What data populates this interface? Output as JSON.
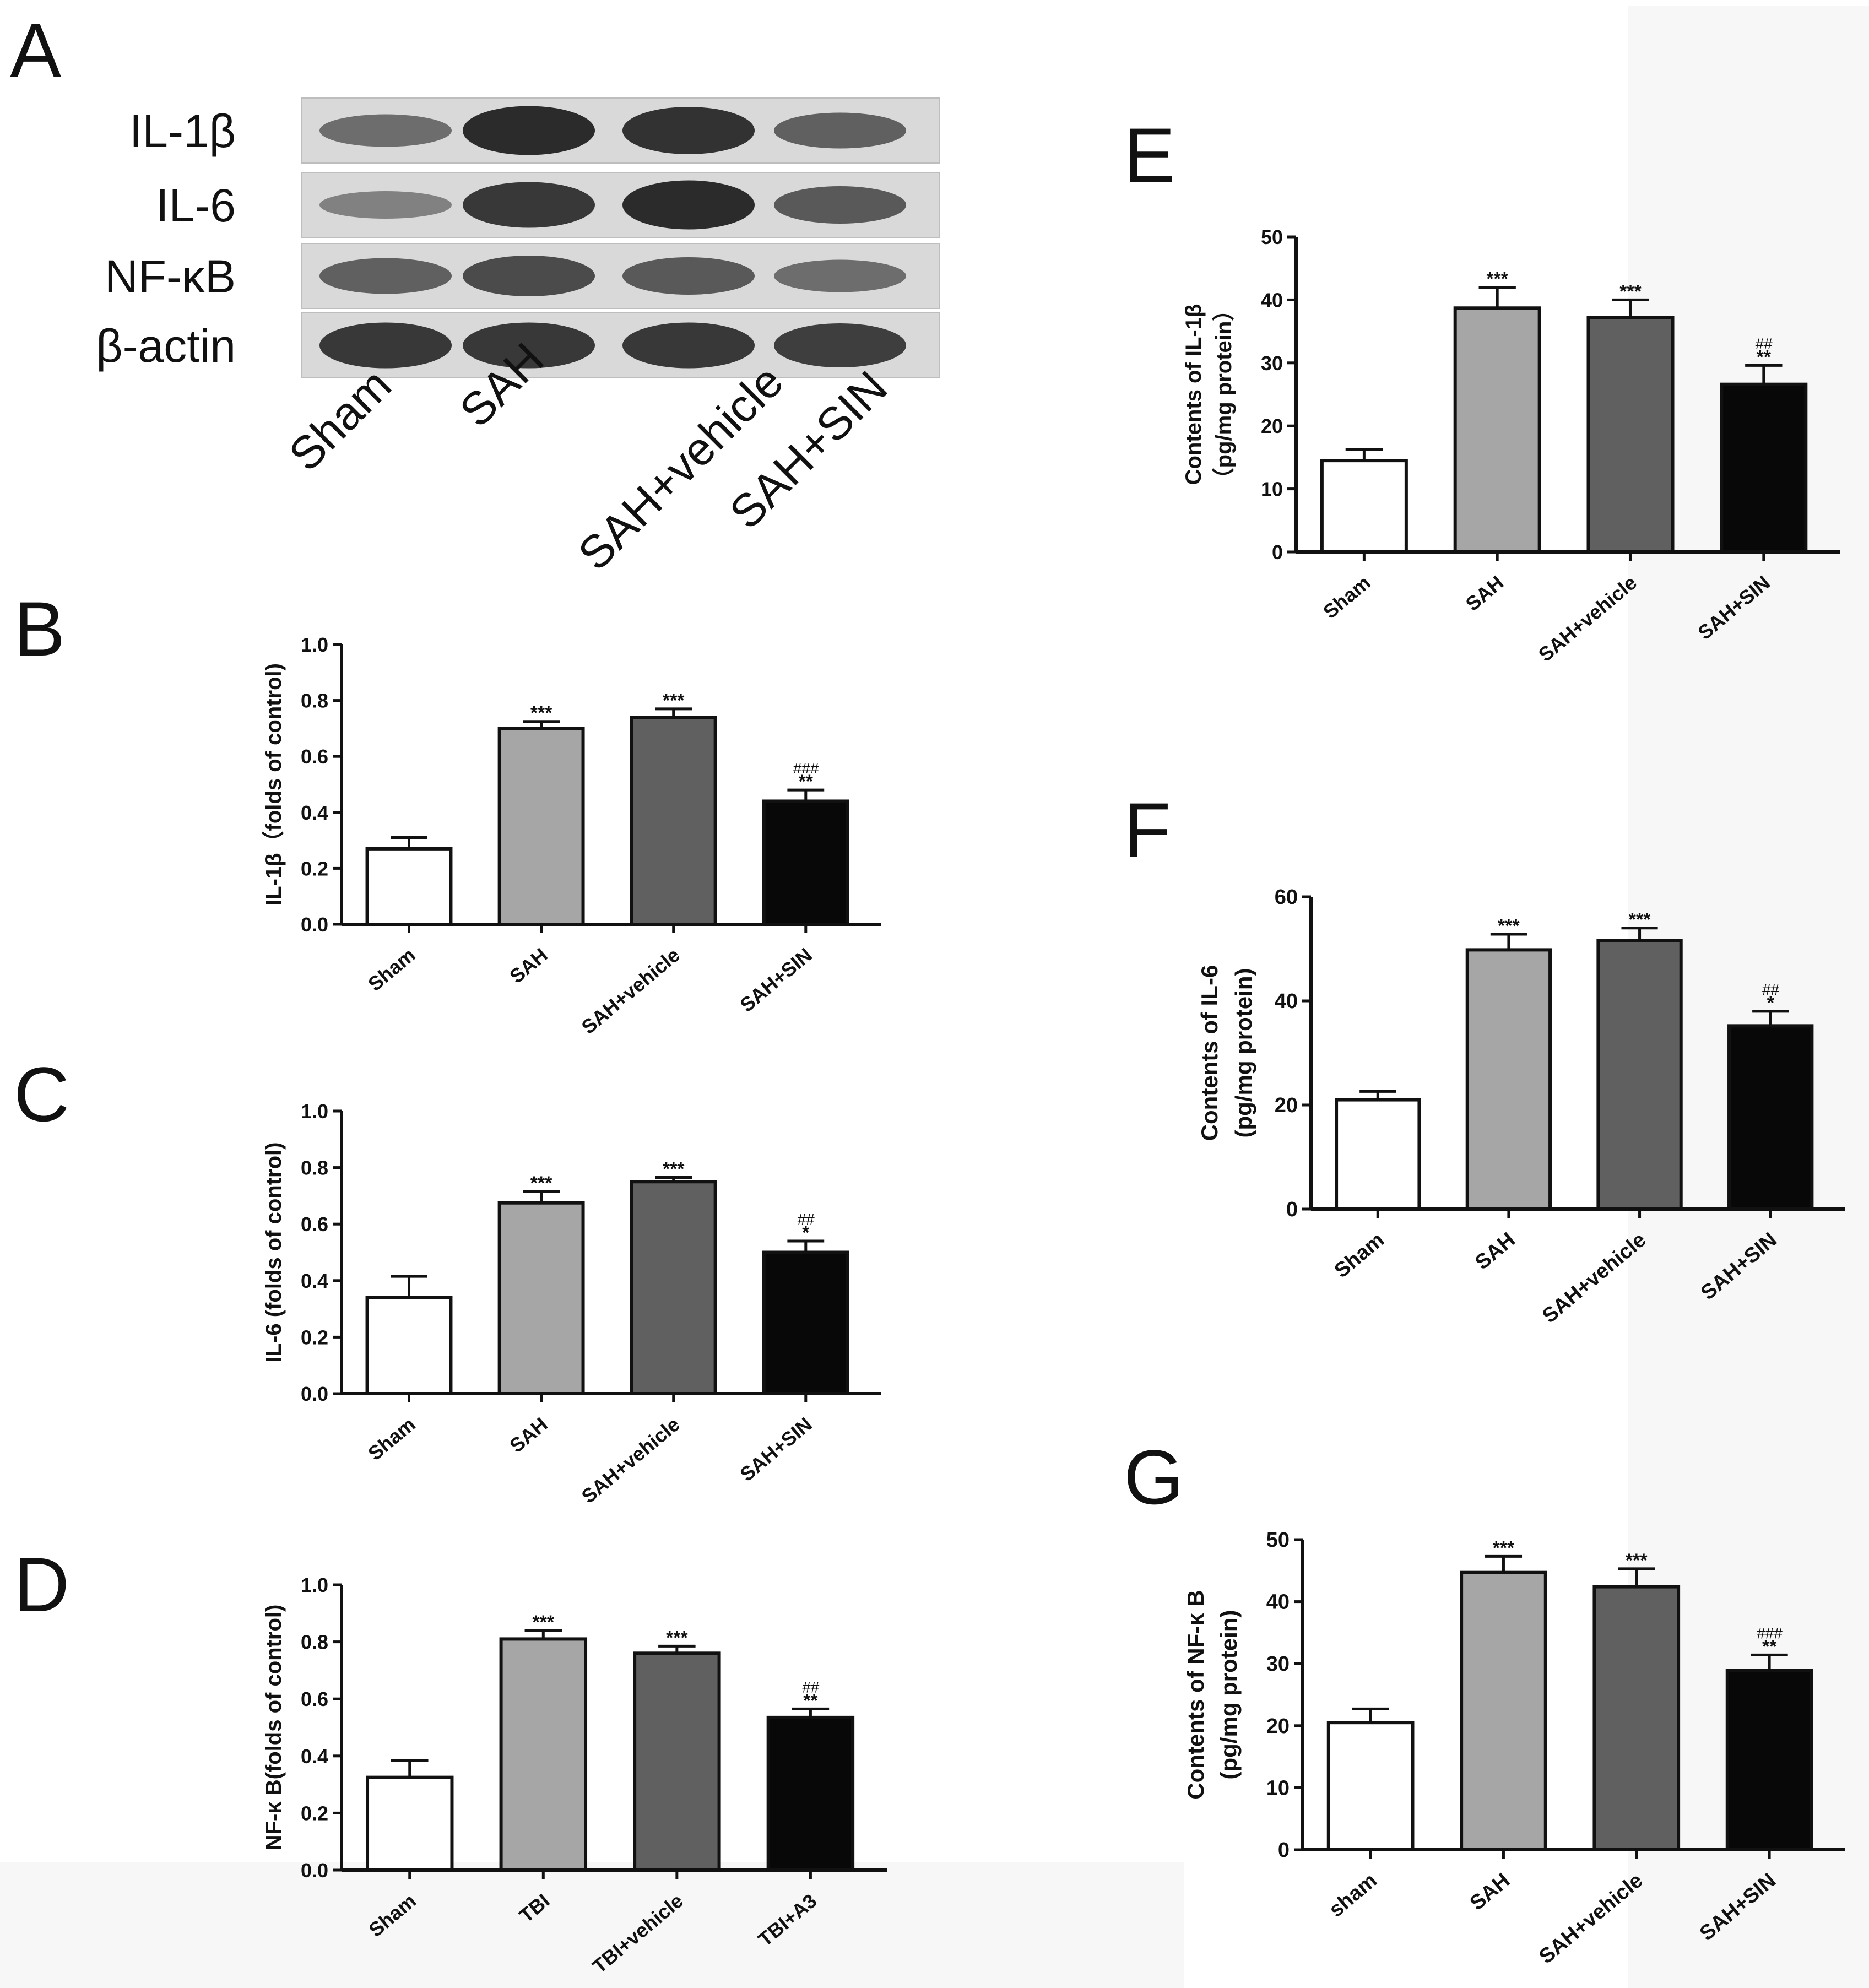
{
  "panel_letters": {
    "A": "A",
    "B": "B",
    "C": "C",
    "D": "D",
    "E": "E",
    "F": "F",
    "G": "G"
  },
  "blot": {
    "rows": [
      "IL-1β",
      "IL-6",
      "NF-κB",
      "β-actin"
    ],
    "lanes": [
      "Sham",
      "SAH",
      "SAH+vehicle",
      "SAH+SIN"
    ],
    "band_intensity": [
      [
        0.45,
        0.95,
        0.9,
        0.55
      ],
      [
        0.3,
        0.85,
        0.95,
        0.6
      ],
      [
        0.55,
        0.7,
        0.6,
        0.45
      ],
      [
        0.85,
        0.85,
        0.85,
        0.8
      ]
    ]
  },
  "colors": {
    "sham": "#ffffff",
    "sah": "#a6a6a6",
    "vehicle": "#606060",
    "treated": "#080808",
    "blot_bg": "#d9d9d9",
    "band": "#1a1a1a"
  },
  "chart_data": [
    {
      "id": "B",
      "type": "bar",
      "categories": [
        "Sham",
        "SAH",
        "SAH+vehicle",
        "SAH+SIN"
      ],
      "values": [
        0.27,
        0.7,
        0.74,
        0.44
      ],
      "errors": [
        0.04,
        0.025,
        0.03,
        0.04
      ],
      "annotations": [
        [
          "",
          ""
        ],
        [
          "",
          "***"
        ],
        [
          "",
          "***"
        ],
        [
          "###",
          "**"
        ]
      ],
      "ylabel": "IL-1β（folds of control)",
      "ylim": [
        0,
        1.0
      ],
      "yticks": [
        "0.0",
        "0.2",
        "0.4",
        "0.6",
        "0.8",
        "1.0"
      ]
    },
    {
      "id": "C",
      "type": "bar",
      "categories": [
        "Sham",
        "SAH",
        "SAH+vehicle",
        "SAH+SIN"
      ],
      "values": [
        0.34,
        0.675,
        0.75,
        0.5
      ],
      "errors": [
        0.075,
        0.04,
        0.015,
        0.04
      ],
      "annotations": [
        [
          "",
          ""
        ],
        [
          "",
          "***"
        ],
        [
          "",
          "***"
        ],
        [
          "##",
          "*"
        ]
      ],
      "ylabel": "IL-6 (folds of control)",
      "ylim": [
        0,
        1.0
      ],
      "yticks": [
        "0.0",
        "0.2",
        "0.4",
        "0.6",
        "0.8",
        "1.0"
      ]
    },
    {
      "id": "D",
      "type": "bar",
      "categories": [
        "Sham",
        "TBI",
        "TBI+vehicle",
        "TBI+A3"
      ],
      "values": [
        0.325,
        0.81,
        0.76,
        0.535
      ],
      "errors": [
        0.06,
        0.03,
        0.025,
        0.03
      ],
      "annotations": [
        [
          "",
          ""
        ],
        [
          "",
          "***"
        ],
        [
          "",
          "***"
        ],
        [
          "##",
          "**"
        ]
      ],
      "ylabel": "NF-κ B(folds of control)",
      "ylim": [
        0,
        1.0
      ],
      "yticks": [
        "0.0",
        "0.2",
        "0.4",
        "0.6",
        "0.8",
        "1.0"
      ]
    },
    {
      "id": "E",
      "type": "bar",
      "categories": [
        "Sham",
        "SAH",
        "SAH+vehicle",
        "SAH+SIN"
      ],
      "values": [
        14.5,
        38.7,
        37.2,
        26.6
      ],
      "errors": [
        1.8,
        3.3,
        2.8,
        3.0
      ],
      "annotations": [
        [
          "",
          ""
        ],
        [
          "",
          "***"
        ],
        [
          "",
          "***"
        ],
        [
          "##",
          "**"
        ]
      ],
      "ylabel": "Contents of IL-1β",
      "ylabel2": "（pg/mg protein）",
      "ylim": [
        0,
        50
      ],
      "yticks": [
        "0",
        "10",
        "20",
        "30",
        "40",
        "50"
      ]
    },
    {
      "id": "F",
      "type": "bar",
      "categories": [
        "Sham",
        "SAH",
        "SAH+vehicle",
        "SAH+SIN"
      ],
      "values": [
        21.0,
        49.8,
        51.6,
        35.2
      ],
      "errors": [
        1.6,
        3.0,
        2.4,
        2.8
      ],
      "annotations": [
        [
          "",
          ""
        ],
        [
          "",
          "***"
        ],
        [
          "",
          "***"
        ],
        [
          "##",
          "*"
        ]
      ],
      "ylabel": "Contents of IL-6",
      "ylabel2": "(pg/mg protein)",
      "ylim": [
        0,
        60
      ],
      "yticks": [
        "0",
        "20",
        "40",
        "60"
      ]
    },
    {
      "id": "G",
      "type": "bar",
      "categories": [
        "sham",
        "SAH",
        "SAH+vehicle",
        "SAH+SIN"
      ],
      "values": [
        20.5,
        44.7,
        42.4,
        28.9
      ],
      "errors": [
        2.2,
        2.6,
        2.9,
        2.5
      ],
      "annotations": [
        [
          "",
          ""
        ],
        [
          "",
          "***"
        ],
        [
          "",
          "***"
        ],
        [
          "###",
          "**"
        ]
      ],
      "ylabel": "Contents of NF-κ B",
      "ylabel2": "(pg/mg protein)",
      "ylim": [
        0,
        50
      ],
      "yticks": [
        "0",
        "10",
        "20",
        "30",
        "40",
        "50"
      ]
    }
  ]
}
